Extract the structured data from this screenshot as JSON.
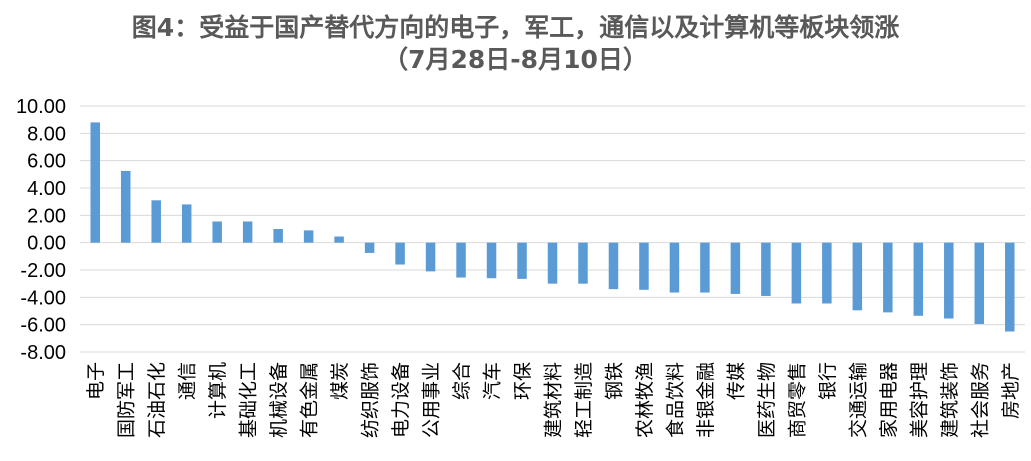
{
  "chart_data": {
    "type": "bar",
    "title": "图4：受益于国产替代方向的电子，军工，通信以及计算机等板块领涨",
    "subtitle": "（7月28日-8月10日）",
    "xlabel": "",
    "ylabel": "",
    "ylim": [
      -8,
      10
    ],
    "yticks": [
      "10.00",
      "8.00",
      "6.00",
      "4.00",
      "2.00",
      "0.00",
      "-2.00",
      "-4.00",
      "-6.00",
      "-8.00"
    ],
    "grid": true,
    "legend": "none",
    "bar_color": "#5B9BD5",
    "categories": [
      "电子",
      "国防军工",
      "石油石化",
      "通信",
      "计算机",
      "基础化工",
      "机械设备",
      "有色金属",
      "煤炭",
      "纺织服饰",
      "电力设备",
      "公用事业",
      "综合",
      "汽车",
      "环保",
      "建筑材料",
      "轻工制造",
      "钢铁",
      "农林牧渔",
      "食品饮料",
      "非银金融",
      "传媒",
      "医药生物",
      "商贸零售",
      "银行",
      "交通运输",
      "家用电器",
      "美容护理",
      "建筑装饰",
      "社会服务",
      "房地产"
    ],
    "values": [
      8.8,
      5.25,
      3.1,
      2.8,
      1.55,
      1.55,
      1.0,
      0.9,
      0.45,
      -0.75,
      -1.6,
      -2.1,
      -2.55,
      -2.6,
      -2.65,
      -3.0,
      -3.0,
      -3.4,
      -3.45,
      -3.65,
      -3.65,
      -3.75,
      -3.9,
      -4.45,
      -4.45,
      -4.95,
      -5.1,
      -5.35,
      -5.55,
      -5.95,
      -6.5
    ]
  }
}
